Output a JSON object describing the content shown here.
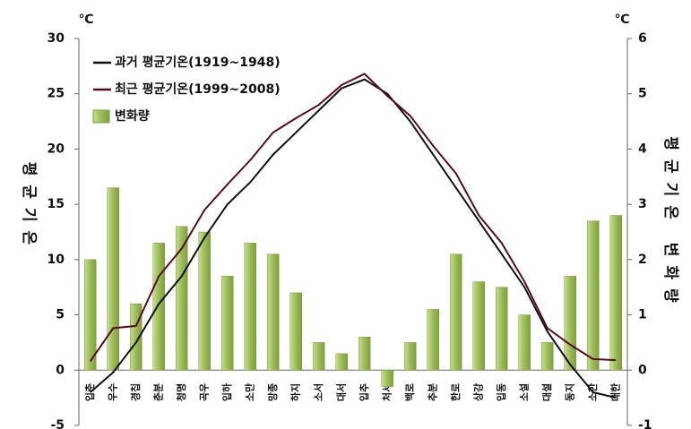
{
  "chart_data": {
    "type": "bar-line",
    "y_unit": "℃",
    "y2_unit": "℃",
    "ylabel": "평균기온",
    "y2label": "평균기온 변화량",
    "categories": [
      "입춘",
      "우수",
      "경칩",
      "춘분",
      "청명",
      "곡우",
      "입하",
      "소만",
      "망종",
      "하지",
      "소서",
      "대서",
      "입추",
      "처서",
      "백로",
      "추분",
      "한로",
      "상강",
      "입동",
      "소설",
      "대설",
      "동지",
      "소한",
      "대한"
    ],
    "series": [
      {
        "name": "과거 평균기온(1919~1948)",
        "type": "line",
        "axis": "y",
        "color": "#111111",
        "values": [
          -2,
          -0.2,
          2.5,
          6,
          8.5,
          12,
          15,
          17,
          19.5,
          21.5,
          23.5,
          25.5,
          26.3,
          25,
          22.5,
          19.5,
          16.5,
          13.5,
          10.5,
          7.5,
          3.5,
          0.5,
          -2,
          -2.5
        ]
      },
      {
        "name": "최근 평균기온(1999~2008)",
        "type": "line",
        "axis": "y",
        "color": "#5a0a1e",
        "values": [
          0.8,
          3.8,
          4,
          8.5,
          11,
          14.5,
          16.8,
          19,
          21.5,
          22.8,
          24,
          25.8,
          26.8,
          24.8,
          23,
          20.3,
          17.8,
          14,
          11.5,
          8,
          3.8,
          2.3,
          1,
          0.9
        ]
      },
      {
        "name": "변화량",
        "type": "bar",
        "axis": "y2",
        "color": "#9bbb59",
        "values": [
          2.0,
          3.3,
          1.2,
          2.3,
          2.6,
          2.5,
          1.7,
          2.3,
          2.1,
          1.4,
          0.5,
          0.3,
          0.6,
          -0.3,
          0.5,
          1.1,
          2.1,
          1.6,
          1.5,
          1.0,
          0.5,
          1.7,
          2.7,
          2.8
        ]
      }
    ],
    "ylim": [
      -5,
      30
    ],
    "yticks": [
      -5,
      0,
      5,
      10,
      15,
      20,
      25,
      30
    ],
    "y2lim": [
      -1,
      6
    ],
    "y2ticks": [
      -1,
      0,
      1,
      2,
      3,
      4,
      5,
      6
    ],
    "legend": "upper left"
  }
}
